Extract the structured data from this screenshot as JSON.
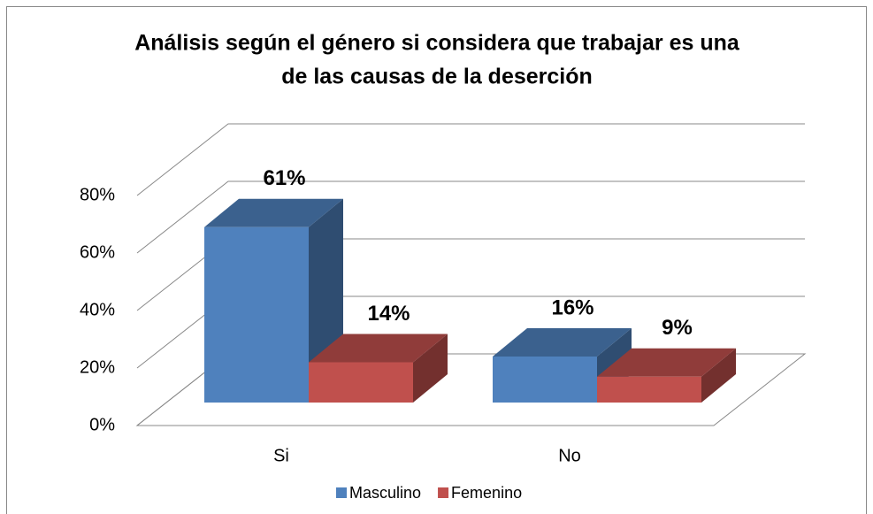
{
  "chart_data": {
    "type": "bar3d",
    "title": [
      "Análisis según el género si considera que trabajar es una",
      "de las causas de la deserción"
    ],
    "categories": [
      "Si",
      "No"
    ],
    "series": [
      {
        "name": "Masculino",
        "color": "#4f81bd",
        "values": [
          61,
          16
        ],
        "value_labels": [
          "61%",
          "16%"
        ]
      },
      {
        "name": "Femenino",
        "color": "#c0504d",
        "values": [
          14,
          9
        ],
        "value_labels": [
          "14%",
          "9%"
        ]
      }
    ],
    "ylim": [
      0,
      80
    ],
    "yticks": [
      {
        "value": 0,
        "label": "0%"
      },
      {
        "value": 20,
        "label": "20%"
      },
      {
        "value": 40,
        "label": "40%"
      },
      {
        "value": 60,
        "label": "60%"
      },
      {
        "value": 80,
        "label": "80%"
      }
    ],
    "grid": true,
    "legend": "bottom"
  }
}
